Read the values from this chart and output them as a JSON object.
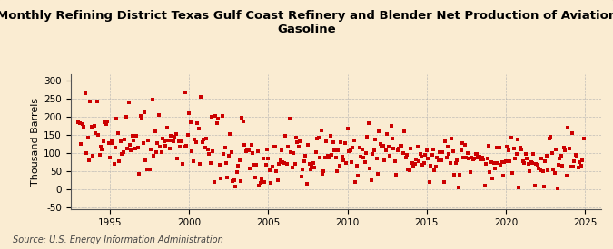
{
  "title": "Monthly Refining District Texas Gulf Coast Refinery and Blender Net Production of Aviation\nGasoline",
  "ylabel": "Thousand Barrels",
  "source": "Source: U.S. Energy Information Administration",
  "background_color": "#faecd2",
  "plot_bg_color": "#faecd2",
  "marker_color": "#cc0000",
  "xlim": [
    1992.5,
    2026.0
  ],
  "ylim": [
    -55,
    315
  ],
  "yticks": [
    -50,
    0,
    50,
    100,
    150,
    200,
    250,
    300
  ],
  "xticks": [
    1995,
    2000,
    2005,
    2010,
    2015,
    2020,
    2025
  ],
  "grid_color": "#b0b0b0",
  "title_fontsize": 9.5,
  "label_fontsize": 8,
  "tick_fontsize": 7.5,
  "source_fontsize": 7
}
